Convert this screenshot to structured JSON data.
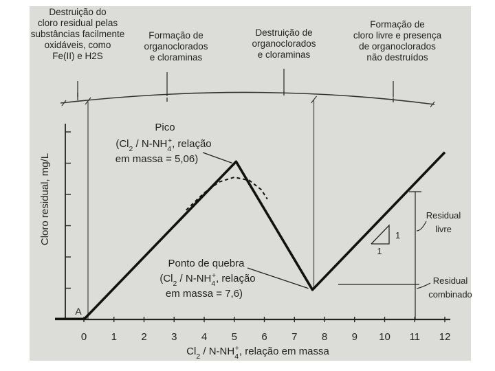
{
  "chart_data": {
    "type": "line",
    "xlabel_parts": [
      "Cl",
      "2",
      " / N-NH",
      "4",
      "+",
      ", relação em massa"
    ],
    "ylabel": "Cloro residual, mg/L",
    "xlim": [
      -0.9,
      12.2
    ],
    "ylim": [
      0,
      10
    ],
    "x_ticks": [
      "0",
      "1",
      "2",
      "3",
      "4",
      "5",
      "6",
      "7",
      "8",
      "9",
      "10",
      "11",
      "12"
    ],
    "series": [
      {
        "style": "solid",
        "x": [
          0,
          5.06,
          7.6,
          12.0
        ],
        "y": [
          0,
          5.05,
          0.95,
          5.35
        ]
      },
      {
        "style": "dashed",
        "x": [
          3.4,
          4.0,
          4.5,
          5.0,
          5.5,
          5.9,
          6.1
        ],
        "y": [
          3.5,
          4.05,
          4.4,
          4.55,
          4.45,
          4.15,
          3.85
        ]
      }
    ],
    "zones": [
      "Destruição do cloro residual pelas substâncias facilmente oxidáveis, como Fe(II) e H2S",
      "Formação de organoclorados e cloraminas",
      "Destruição de organoclorados e cloraminas",
      "Formação de cloro livre e presença de organoclorados não destruídos"
    ],
    "zone_lines": [
      [
        "Destruição do",
        "cloro residual pelas",
        "substâncias facilmente",
        "oxidáveis, como",
        "Fe(II) e H2S"
      ],
      [
        "Formação de",
        "organoclorados",
        "e cloraminas"
      ],
      [
        "Destruição de",
        "organoclorados",
        "e cloraminas"
      ],
      [
        "Formação de",
        "cloro livre e presença",
        "de organoclorados",
        "não destruídos"
      ]
    ],
    "annotations": {
      "peak_lines": [
        [
          "Pico"
        ],
        [
          "(Cl",
          "2",
          " / N-NH",
          "4",
          "+",
          ", relação"
        ],
        [
          "em massa = 5,06)"
        ]
      ],
      "break_lines": [
        [
          "Ponto de quebra"
        ],
        [
          "(Cl",
          "2",
          " / N-NH",
          "4",
          "+",
          ", relação"
        ],
        [
          "em massa = 7,6)"
        ]
      ],
      "origin": "A",
      "slope_run": "1",
      "slope_rise": "1",
      "residual_free_lines": [
        "Residual",
        "livre"
      ],
      "residual_combined_lines": [
        "Residual",
        "combinado"
      ]
    }
  }
}
